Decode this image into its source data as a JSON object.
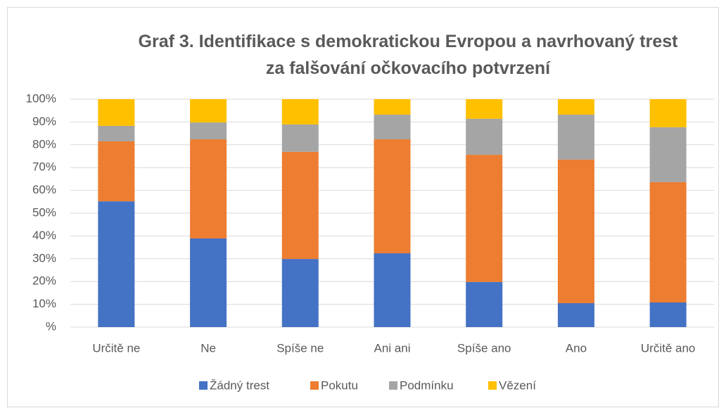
{
  "chart_data": {
    "type": "stacked_bar",
    "title": "Graf 3. Identifikace s demokratickou Evropou a navrhovaný trest za falšování očkovacího potvrzení",
    "categories": [
      "Určitě ne",
      "Ne",
      "Spíše ne",
      "Ani ani",
      "Spíše ano",
      "Ano",
      "Určitě ano"
    ],
    "series": [
      {
        "name": "Žádný trest",
        "color": "#4472c4",
        "values": [
          55.2,
          38.9,
          29.9,
          32.4,
          19.8,
          10.5,
          10.8
        ]
      },
      {
        "name": "Pokutu",
        "color": "#ed7d31",
        "values": [
          26.3,
          43.5,
          47.0,
          50.0,
          55.8,
          63.0,
          52.8
        ]
      },
      {
        "name": "Podmínku",
        "color": "#a5a5a5",
        "values": [
          6.8,
          7.4,
          12.0,
          10.8,
          15.8,
          19.7,
          24.1
        ]
      },
      {
        "name": "Vězení",
        "color": "#ffc000",
        "values": [
          11.7,
          10.2,
          11.1,
          6.8,
          8.6,
          6.8,
          12.3
        ]
      }
    ],
    "ylim": [
      0,
      100
    ],
    "yticks": [
      {
        "value": 0,
        "label": "%"
      },
      {
        "value": 10,
        "label": "10%"
      },
      {
        "value": 20,
        "label": "20%"
      },
      {
        "value": 30,
        "label": "30%"
      },
      {
        "value": 40,
        "label": "40%"
      },
      {
        "value": 50,
        "label": "50%"
      },
      {
        "value": 60,
        "label": "60%"
      },
      {
        "value": 70,
        "label": "70%"
      },
      {
        "value": 80,
        "label": "80%"
      },
      {
        "value": 90,
        "label": "90%"
      },
      {
        "value": 100,
        "label": "100%"
      }
    ],
    "grid": true,
    "legend": "bottom"
  }
}
